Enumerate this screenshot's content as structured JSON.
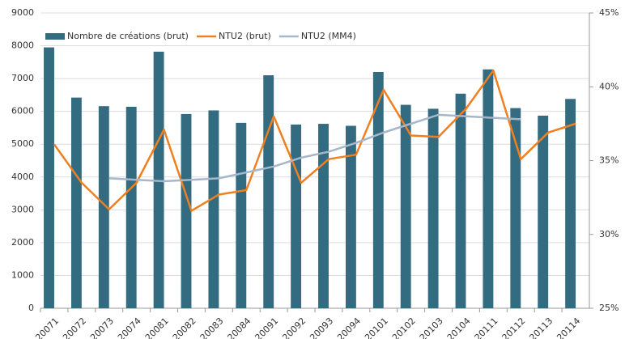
{
  "chart_data": {
    "type": "bar",
    "categories": [
      "20071",
      "20072",
      "20073",
      "20074",
      "20081",
      "20082",
      "20083",
      "20084",
      "20091",
      "20092",
      "20093",
      "20094",
      "20101",
      "20102",
      "20103",
      "20104",
      "20111",
      "20112",
      "20113",
      "20114"
    ],
    "series": [
      {
        "name": "Nombre de créations (brut)",
        "type": "bar",
        "color": "#336b80",
        "values": [
          7950,
          6420,
          6160,
          6140,
          7820,
          5920,
          6030,
          5650,
          7100,
          5600,
          5620,
          5560,
          7200,
          6200,
          6080,
          6540,
          7280,
          6100,
          5870,
          6380
        ]
      },
      {
        "name": "NTU2 (brut)",
        "type": "line",
        "axis": "y2",
        "color": "#f0801f",
        "values": [
          36.1,
          33.5,
          31.7,
          33.5,
          37.1,
          31.6,
          32.7,
          33.0,
          38.0,
          33.5,
          35.1,
          35.4,
          39.8,
          36.7,
          36.6,
          38.5,
          41.1,
          35.1,
          36.9,
          37.5
        ]
      },
      {
        "name": "NTU2 (MM4)",
        "type": "line",
        "axis": "y2",
        "color": "#a7b6c8",
        "values": [
          null,
          null,
          33.8,
          33.7,
          33.6,
          33.7,
          33.8,
          34.2,
          34.6,
          35.2,
          35.6,
          36.2,
          36.9,
          37.5,
          38.1,
          38.0,
          37.9,
          37.8,
          null,
          null
        ]
      }
    ],
    "ylim": [
      0,
      9000
    ],
    "yticks": [
      0,
      1000,
      2000,
      3000,
      4000,
      5000,
      6000,
      7000,
      8000,
      9000
    ],
    "y2lim": [
      25,
      45
    ],
    "y2ticks": [
      {
        "value": 25,
        "label": "25%"
      },
      {
        "value": 30,
        "label": "30%"
      },
      {
        "value": 35,
        "label": "35%"
      },
      {
        "value": 40,
        "label": "40%"
      },
      {
        "value": 45,
        "label": "45%"
      }
    ],
    "grid": true,
    "legend": "top-left"
  }
}
